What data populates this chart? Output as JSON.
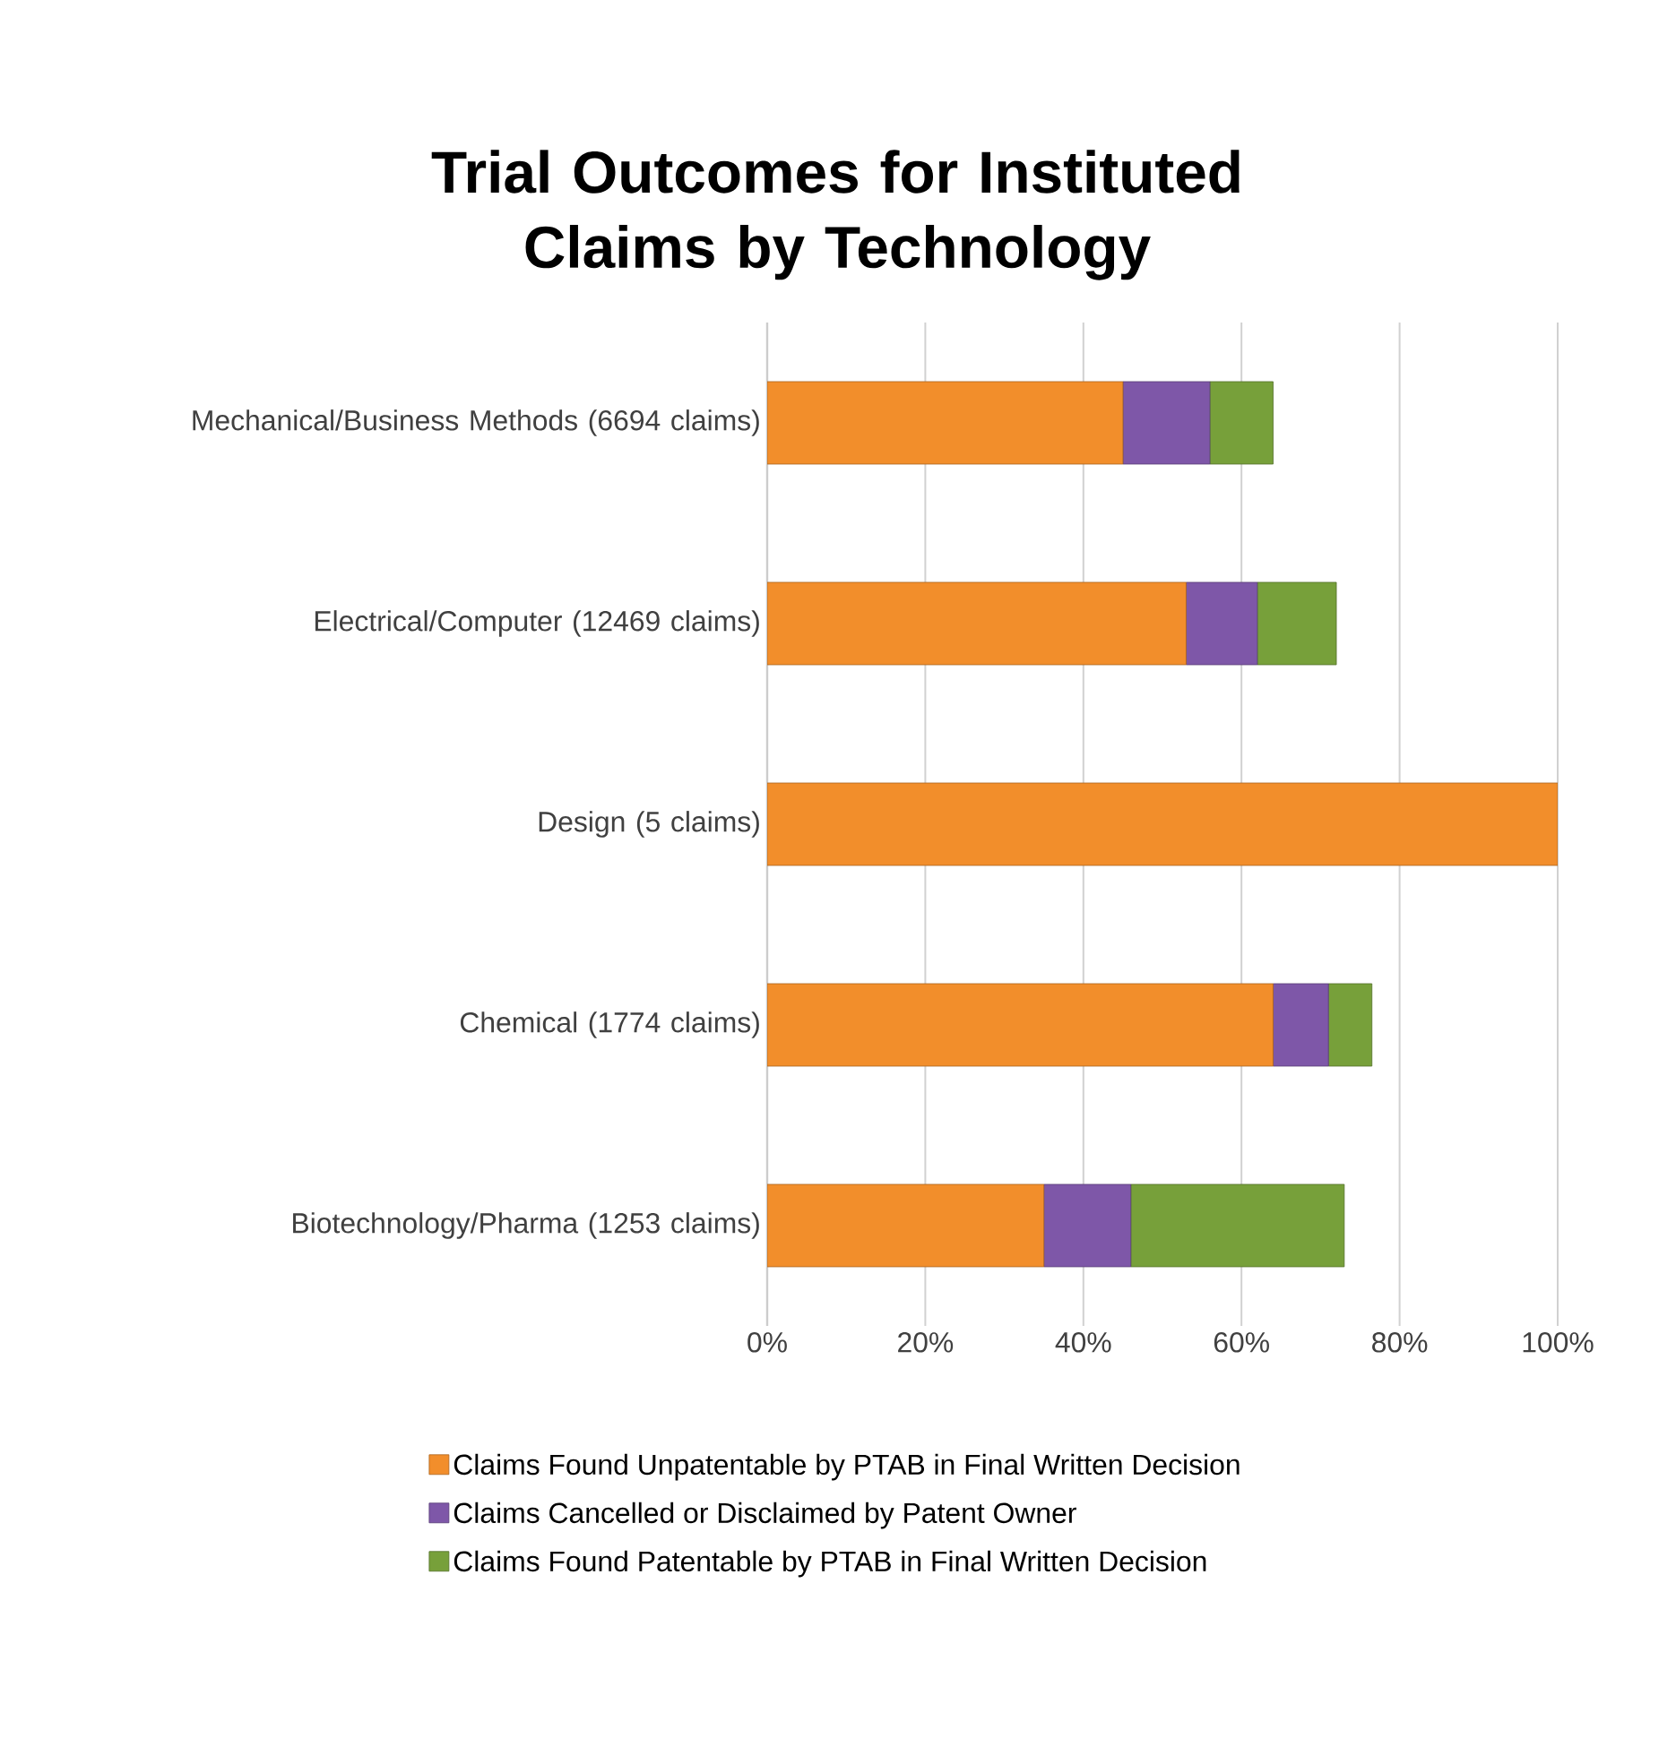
{
  "chart_data": {
    "type": "bar",
    "orientation": "horizontal",
    "stacked": true,
    "title": "Trial Outcomes for Instituted Claims by Technology",
    "categories": [
      "Mechanical/Business Methods (6694 claims)",
      "Electrical/Computer (12469 claims)",
      "Design (5 claims)",
      "Chemical (1774 claims)",
      "Biotechnology/Pharma (1253 claims)"
    ],
    "series": [
      {
        "name": "Claims Found Unpatentable by PTAB in Final Written Decision",
        "color": "#f28e2b",
        "values": [
          45,
          53,
          100,
          64,
          35
        ]
      },
      {
        "name": "Claims Cancelled or Disclaimed by Patent Owner",
        "color": "#7e57a8",
        "values": [
          11,
          9,
          0,
          7,
          11
        ]
      },
      {
        "name": "Claims Found Patentable by PTAB in Final Written Decision",
        "color": "#77a03a",
        "values": [
          8,
          10,
          0,
          5.5,
          27
        ]
      }
    ],
    "xlim": [
      0,
      100
    ],
    "xticks": [
      {
        "value": 0,
        "label": "0%"
      },
      {
        "value": 20,
        "label": "20%"
      },
      {
        "value": 40,
        "label": "40%"
      },
      {
        "value": 60,
        "label": "60%"
      },
      {
        "value": 80,
        "label": "80%"
      },
      {
        "value": 100,
        "label": "100%"
      }
    ],
    "grid": "x",
    "legend": "bottom"
  }
}
